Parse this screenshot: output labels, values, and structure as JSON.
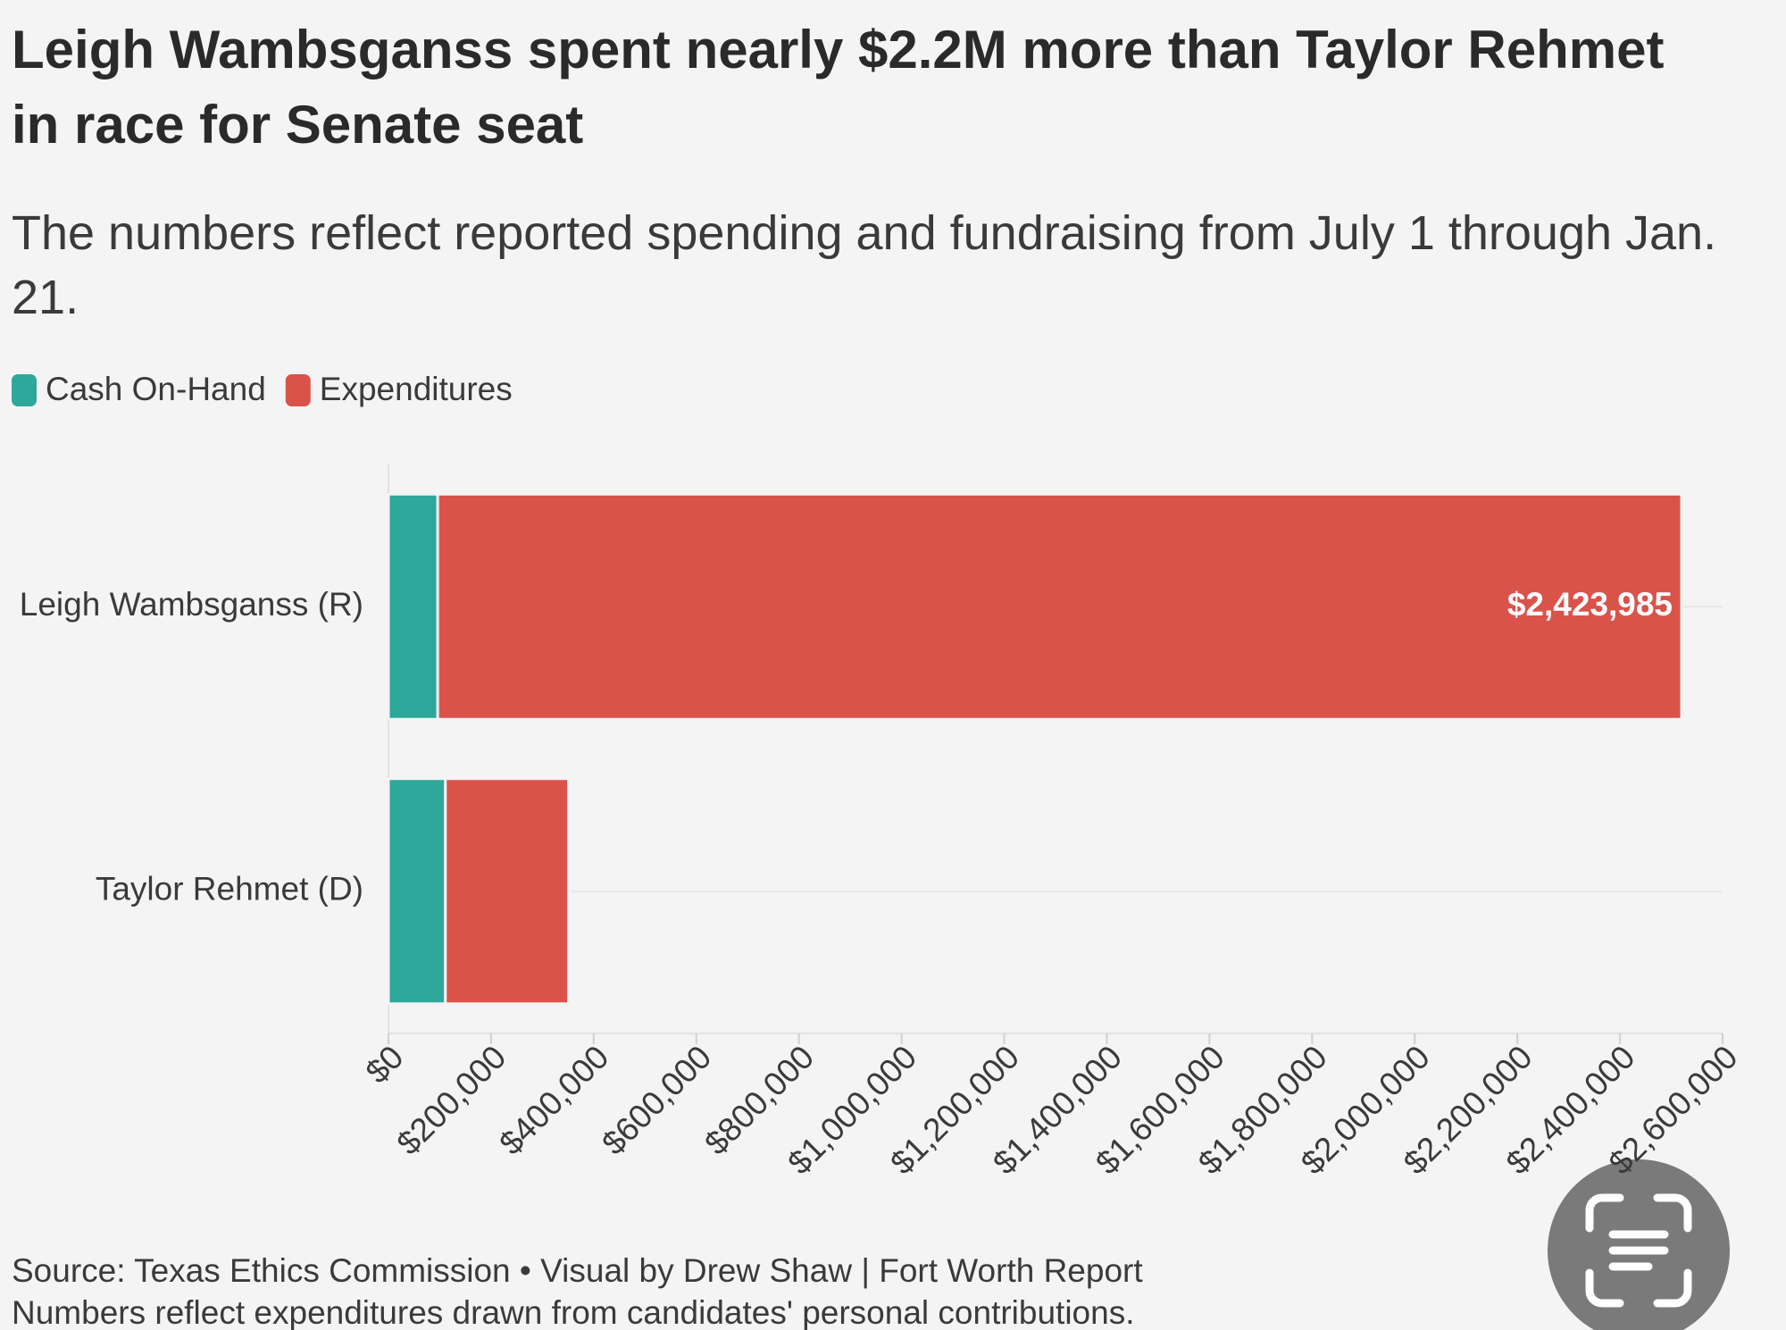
{
  "chart_data": {
    "type": "stacked-bar-horizontal",
    "title": "Leigh Wambsganss spent nearly $2.2M more than Taylor Rehmet in race for Senate seat",
    "subtitle": "The numbers reflect reported spending and fundraising from July 1 through Jan. 21.",
    "categories": [
      "Leigh Wambsganss (R)",
      "Taylor Rehmet (D)"
    ],
    "series": [
      {
        "name": "Cash On-Hand",
        "color": "#2ea89b",
        "values": [
          96000,
          111000
        ]
      },
      {
        "name": "Expenditures",
        "color": "#d9534b",
        "values": [
          2423985,
          240000
        ],
        "value_labels": [
          "$2,423,985",
          null
        ]
      }
    ],
    "xlim": [
      0,
      2600000
    ],
    "xticks": [
      {
        "value": 0,
        "label": "$0"
      },
      {
        "value": 200000,
        "label": "$200,000"
      },
      {
        "value": 400000,
        "label": "$400,000"
      },
      {
        "value": 600000,
        "label": "$600,000"
      },
      {
        "value": 800000,
        "label": "$800,000"
      },
      {
        "value": 1000000,
        "label": "$1,000,000"
      },
      {
        "value": 1200000,
        "label": "$1,200,000"
      },
      {
        "value": 1400000,
        "label": "$1,400,000"
      },
      {
        "value": 1600000,
        "label": "$1,600,000"
      },
      {
        "value": 1800000,
        "label": "$1,800,000"
      },
      {
        "value": 2000000,
        "label": "$2,000,000"
      },
      {
        "value": 2200000,
        "label": "$2,200,000"
      },
      {
        "value": 2400000,
        "label": "$2,400,000"
      },
      {
        "value": 2600000,
        "label": "$2,600,000"
      }
    ],
    "source": "Source: Texas Ethics Commission • Visual by Drew Shaw | Fort Worth Report",
    "note": "Numbers reflect expenditures drawn from candidates' personal contributions."
  }
}
